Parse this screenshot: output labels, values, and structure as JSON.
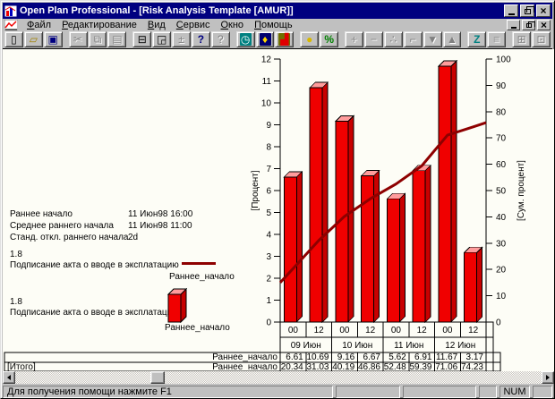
{
  "window": {
    "title": "Open Plan Professional - [Risk Analysis Template [AMUR]]"
  },
  "menu": {
    "items": [
      {
        "key": "file",
        "label": "Файл"
      },
      {
        "key": "edit",
        "label": "Редактирование"
      },
      {
        "key": "view",
        "label": "Вид"
      },
      {
        "key": "service",
        "label": "Сервис"
      },
      {
        "key": "window",
        "label": "Окно"
      },
      {
        "key": "help",
        "label": "Помощь"
      }
    ]
  },
  "toolbar": {
    "groups": [
      [
        {
          "icon": "new-icon",
          "enabled": true
        },
        {
          "icon": "open-icon",
          "enabled": true
        },
        {
          "icon": "save-icon",
          "enabled": true
        }
      ],
      [
        {
          "icon": "cut-icon",
          "enabled": false
        },
        {
          "icon": "copy-icon",
          "enabled": false
        },
        {
          "icon": "paste-icon",
          "enabled": false
        }
      ],
      [
        {
          "icon": "print-icon",
          "enabled": true
        },
        {
          "icon": "print-preview-icon",
          "enabled": true
        },
        {
          "icon": "chart-adjust-icon",
          "enabled": false
        },
        {
          "icon": "help-icon",
          "enabled": true
        },
        {
          "icon": "context-help-icon",
          "enabled": false
        }
      ],
      [
        {
          "icon": "clock-icon",
          "enabled": true
        },
        {
          "icon": "risk-duck-icon",
          "enabled": true
        },
        {
          "icon": "bar-chart-icon",
          "enabled": true
        }
      ],
      [
        {
          "icon": "coin-icon",
          "enabled": true
        },
        {
          "icon": "percent-icon",
          "enabled": true
        }
      ],
      [
        {
          "icon": "plus-icon",
          "enabled": false
        },
        {
          "icon": "minus-icon",
          "enabled": false
        },
        {
          "icon": "link-dots-icon",
          "enabled": false
        },
        {
          "icon": "link-steps-icon",
          "enabled": false
        },
        {
          "icon": "arrow-down-icon",
          "enabled": false
        },
        {
          "icon": "arrow-up-icon",
          "enabled": false
        }
      ],
      [
        {
          "icon": "sort-z-icon",
          "enabled": true
        },
        {
          "icon": "notes-icon",
          "enabled": false
        }
      ],
      [
        {
          "icon": "expand-icon",
          "enabled": false
        },
        {
          "icon": "collapse-icon",
          "enabled": false
        }
      ]
    ]
  },
  "info": {
    "rows": [
      {
        "label": "Раннее начало",
        "value": "11 Июн98 16:00"
      },
      {
        "label": "Среднее раннего начала",
        "value": "11 Июн98 11:00"
      },
      {
        "label": "Станд. откл. раннего начала",
        "value": "2d"
      }
    ]
  },
  "legend": [
    {
      "value": "1.8",
      "description": "Подписание акта о вводе в эксплатацию",
      "series": "Раннее_начало",
      "swatch": "line"
    },
    {
      "value": "1.8",
      "description": "Подписание акта о вводе в эксплатацию",
      "series": "Раннее_начало",
      "swatch": "bar"
    }
  ],
  "chart_data": {
    "type": "bar",
    "x_hours": [
      "00",
      "12",
      "00",
      "12",
      "00",
      "12",
      "00",
      "12"
    ],
    "dates": [
      "09 Июн",
      "10 Июн",
      "11 Июн",
      "12 Июн"
    ],
    "series": [
      {
        "name": "Раннее_начало",
        "type": "bar",
        "axis": "left",
        "values": [
          6.61,
          10.69,
          9.16,
          6.67,
          5.62,
          6.91,
          11.67,
          3.17
        ],
        "color": "#f00000"
      },
      {
        "name": "Раннее_начало",
        "type": "line",
        "axis": "right",
        "values": [
          20.34,
          31.03,
          40.19,
          46.86,
          52.48,
          59.39,
          71.06,
          74.23
        ],
        "color": "#8e0000"
      }
    ],
    "left_axis": {
      "label": "[Процент]",
      "min": 0,
      "max": 12,
      "step": 1
    },
    "right_axis": {
      "label": "[Сум. процент]",
      "min": 0,
      "max": 100,
      "step": 10
    },
    "bar_colors": {
      "front": "#f00000",
      "side": "#c80000",
      "top": "#ff9c9c"
    }
  },
  "table": {
    "rows": [
      {
        "left": "",
        "series": "Раннее_начало",
        "values": [
          "6.61",
          "10.69",
          "9.16",
          "6.67",
          "5.62",
          "6.91",
          "11.67",
          "3.17"
        ]
      },
      {
        "left": "[Итого]",
        "series": "Раннее_начало",
        "values": [
          "20.34",
          "31.03",
          "40.19",
          "46.86",
          "52.48",
          "59.39",
          "71.06",
          "74.23"
        ]
      }
    ]
  },
  "status": {
    "help": "Для получения помощи нажмите F1",
    "num": "NUM"
  }
}
